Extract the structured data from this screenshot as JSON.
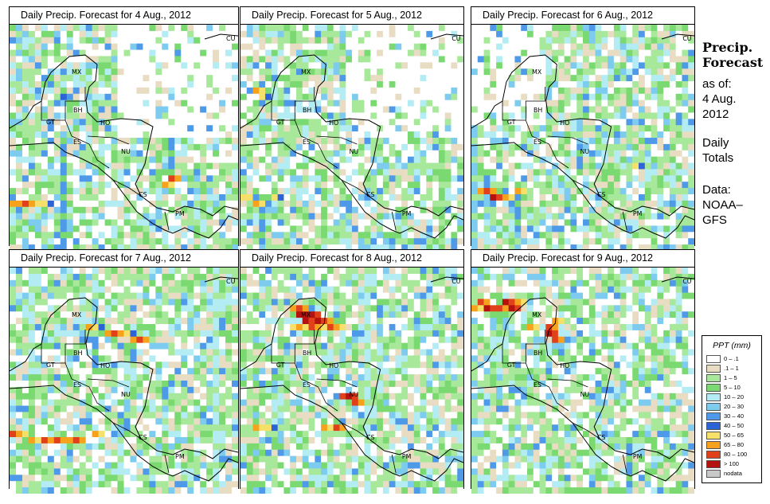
{
  "panels": [
    {
      "title": "Daily Precip. Forecast for  4 Aug., 2012",
      "seed": 11,
      "hot": []
    },
    {
      "title": "Daily Precip. Forecast for  5 Aug., 2012",
      "seed": 23,
      "hot": []
    },
    {
      "title": "Daily Precip. Forecast for  6 Aug., 2012",
      "seed": 37,
      "hot": []
    },
    {
      "title": "Daily Precip. Forecast for  7 Aug., 2012",
      "seed": 41,
      "hot": []
    },
    {
      "title": "Daily Precip. Forecast for  8 Aug., 2012",
      "seed": 53,
      "hot": []
    },
    {
      "title": "Daily Precip. Forecast for  9 Aug., 2012",
      "seed": 67,
      "hot": []
    }
  ],
  "country_labels": [
    "CU",
    "MX",
    "BH",
    "GT",
    "HO",
    "ES",
    "NU",
    "CS",
    "PM"
  ],
  "sidebar": {
    "title_line1": "Precip.",
    "title_line2": "Forecast",
    "asof_line1": "as of:",
    "asof_line2": "4 Aug.",
    "asof_line3": "2012",
    "totals_line1": "Daily",
    "totals_line2": "Totals",
    "data_line1": "Data:",
    "data_line2": "NOAA–",
    "data_line3": "GFS"
  },
  "legend": {
    "title": "PPT (mm)",
    "items": [
      {
        "label": "0 – .1",
        "color": "#ffffff"
      },
      {
        "label": ".1 – 1",
        "color": "#e8dcc2"
      },
      {
        "label": "1 – 5",
        "color": "#a8e89a"
      },
      {
        "label": "5 – 10",
        "color": "#7ad970"
      },
      {
        "label": "10 – 20",
        "color": "#b4ecf4"
      },
      {
        "label": "20 – 30",
        "color": "#7ecbf0"
      },
      {
        "label": "30 – 40",
        "color": "#4f9ae8"
      },
      {
        "label": "40 – 50",
        "color": "#2c63d6"
      },
      {
        "label": "50 – 65",
        "color": "#f7e06a"
      },
      {
        "label": "65 – 80",
        "color": "#f7a21c"
      },
      {
        "label": "80 – 100",
        "color": "#e0411a"
      },
      {
        "label": "> 100",
        "color": "#b3120f"
      },
      {
        "label": "nodata",
        "color": "#c8c8c8"
      }
    ]
  }
}
